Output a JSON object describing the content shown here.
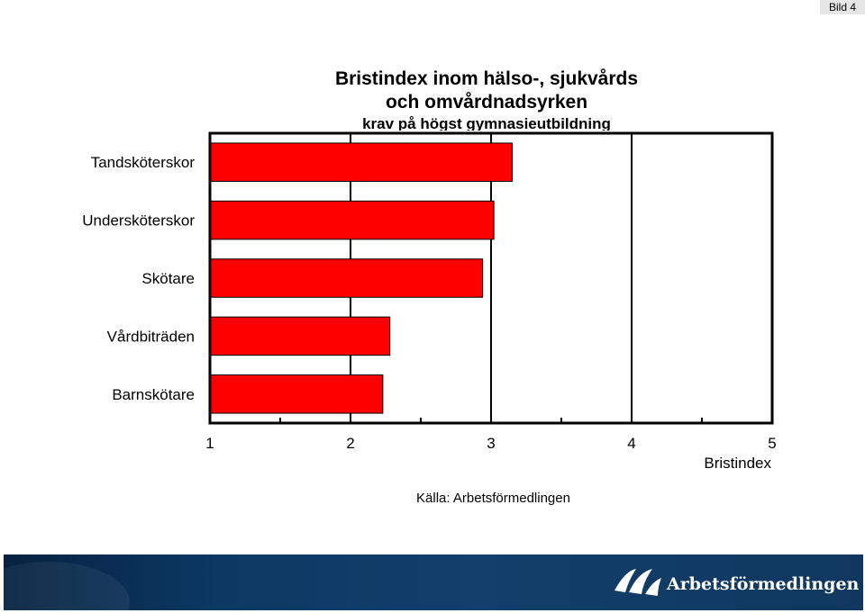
{
  "slide_label": "Bild 4",
  "chart_data": {
    "type": "bar",
    "orientation": "horizontal",
    "title_lines": [
      "Bristindex inom hälso-, sjukvårds",
      "och omvårdnadsyrken"
    ],
    "subtitle": "krav på högst gymnasieutbildning",
    "categories": [
      "Tandsköterskor",
      "Undersköterskor",
      "Skötare",
      "Vårdbiträden",
      "Barnskötare"
    ],
    "values": [
      3.15,
      3.02,
      2.94,
      2.28,
      2.23
    ],
    "xlim": [
      1,
      5
    ],
    "xticks": [
      "1",
      "2",
      "3",
      "4",
      "5"
    ],
    "xlabel": "Bristindex",
    "bar_color": "#ff0000",
    "grid": true
  },
  "source": "Källa: Arbetsförmedlingen",
  "footer": {
    "logo_text": "Arbetsförmedlingen"
  }
}
